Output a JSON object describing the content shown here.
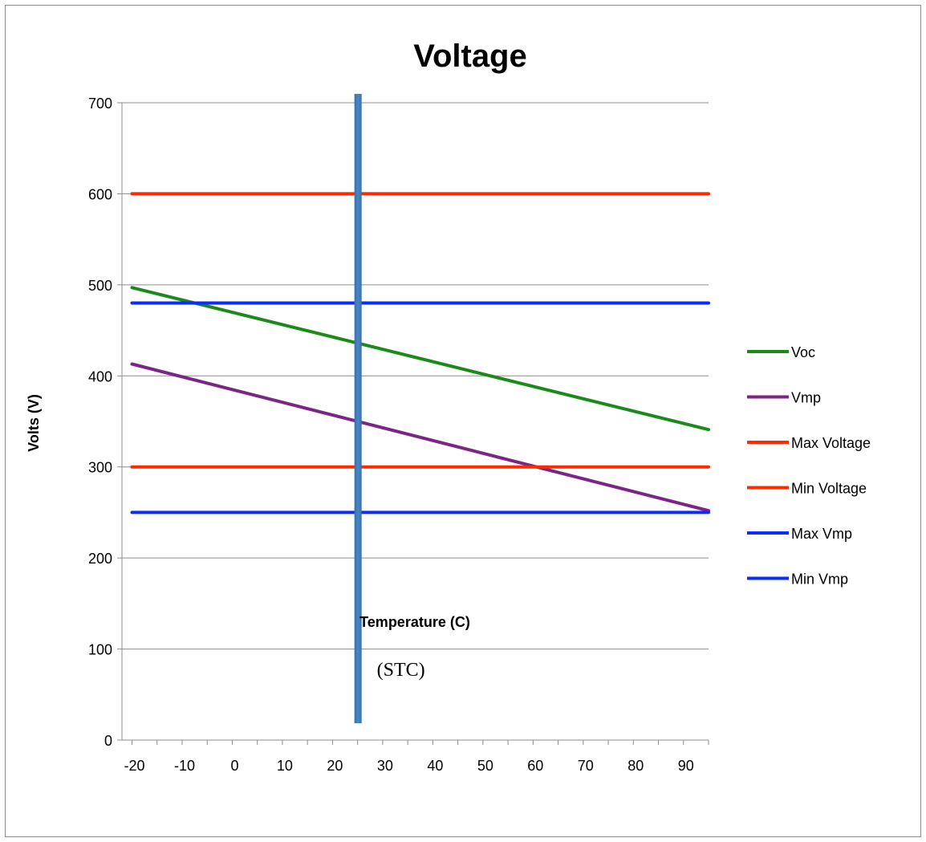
{
  "chart_data": {
    "type": "line",
    "title": "Voltage",
    "xlabel": "Temperature (C)",
    "ylabel": "Volts (V)",
    "xlim": [
      -22,
      95
    ],
    "ylim": [
      0,
      700
    ],
    "x_tick_labels": [
      "-20",
      "-10",
      "0",
      "10",
      "20",
      "30",
      "40",
      "50",
      "60",
      "70",
      "80",
      "90"
    ],
    "y_tick_labels": [
      "0",
      "100",
      "200",
      "300",
      "400",
      "500",
      "600",
      "700"
    ],
    "y_ticks": [
      0,
      100,
      200,
      300,
      400,
      500,
      600,
      700
    ],
    "grid": "horizontal",
    "legend_position": "right",
    "series": [
      {
        "name": "Voc",
        "color": "#1b8a1b",
        "x": [
          -20,
          95
        ],
        "y": [
          497,
          341
        ]
      },
      {
        "name": "Vmp",
        "color": "#7b2587",
        "x": [
          -20,
          95
        ],
        "y": [
          413,
          252
        ]
      },
      {
        "name": "Max Voltage",
        "color": "#ff2a00",
        "x": [
          -20,
          95
        ],
        "y": [
          600,
          600
        ]
      },
      {
        "name": "Min Voltage",
        "color": "#ff2a00",
        "x": [
          -20,
          95
        ],
        "y": [
          300,
          300
        ]
      },
      {
        "name": "Max Vmp",
        "color": "#0a2cff",
        "x": [
          -20,
          95
        ],
        "y": [
          480,
          480
        ]
      },
      {
        "name": "Min Vmp",
        "color": "#0a2cff",
        "x": [
          -20,
          95
        ],
        "y": [
          250,
          250
        ]
      }
    ],
    "annotation": {
      "label": "(STC)",
      "x": 25,
      "color": "#4a86c5"
    }
  }
}
